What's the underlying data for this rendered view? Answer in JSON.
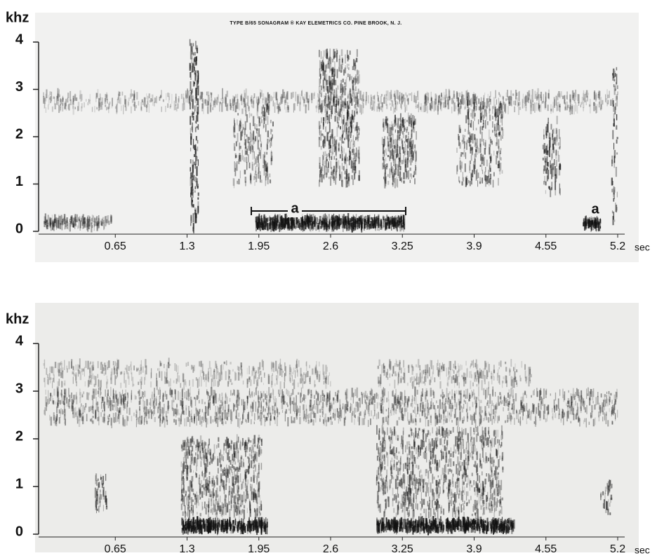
{
  "chart_data": [
    {
      "type": "spectrogram",
      "title": "TYPE B/65 SONAGRAM ® KAY ELEMETRICS CO. PINE BROOK, N. J.",
      "y_label": "khz",
      "x_label": "sec",
      "annotations": [
        "a",
        "a"
      ],
      "xlim": [
        0,
        5.2
      ],
      "xticks": [
        0.65,
        1.3,
        1.95,
        2.6,
        3.25,
        3.9,
        4.55,
        5.2
      ],
      "ylim": [
        0,
        4
      ],
      "yticks": [
        0,
        1,
        2,
        3,
        4
      ]
    },
    {
      "type": "spectrogram",
      "y_label": "khz",
      "x_label": "sec",
      "xlim": [
        0,
        5.2
      ],
      "xticks": [
        0.65,
        1.3,
        1.95,
        2.6,
        3.25,
        3.9,
        4.55,
        5.2
      ],
      "ylim": [
        0,
        4
      ],
      "yticks": [
        0,
        1,
        2,
        3,
        4
      ]
    }
  ]
}
